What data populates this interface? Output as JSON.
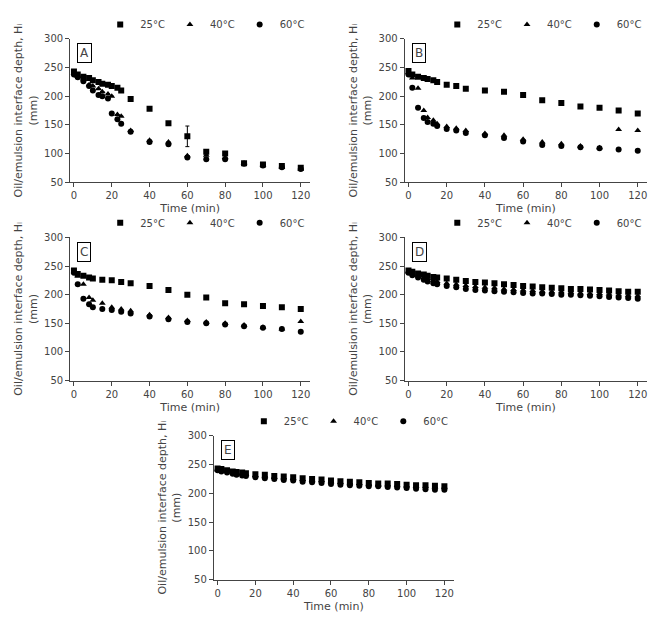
{
  "chart_data": [
    {
      "type": "scatter",
      "title": "A",
      "xlabel": "Time (min)",
      "ylabel": "Oil/emulsion interface depth, Hᵢ\n(mm)",
      "xlim": [
        -2,
        125
      ],
      "xticks": [
        0,
        20,
        40,
        60,
        80,
        100,
        120
      ],
      "ylim": [
        50,
        300
      ],
      "yticks": [
        50,
        100,
        150,
        200,
        250,
        300
      ],
      "grid": false,
      "legend": "upper right",
      "series": [
        {
          "name": "25°C",
          "color": "black",
          "marker": "square",
          "x": [
            0,
            2,
            5,
            8,
            10,
            13,
            15,
            18,
            20,
            23,
            25,
            30,
            40,
            50,
            60,
            70,
            80,
            90,
            100,
            110,
            120
          ],
          "values": [
            243,
            238,
            234,
            232,
            228,
            225,
            222,
            220,
            218,
            215,
            210,
            195,
            178,
            153,
            130,
            103,
            100,
            83,
            81,
            78,
            75
          ],
          "errors": [
            0,
            0,
            0,
            0,
            0,
            0,
            0,
            0,
            0,
            0,
            0,
            0,
            0,
            0,
            18,
            0,
            0,
            0,
            0,
            0,
            0
          ]
        },
        {
          "name": "40°C",
          "color": "black",
          "marker": "triangle-up",
          "x": [
            0,
            2,
            5,
            8,
            10,
            13,
            15,
            18,
            20,
            23,
            25,
            30,
            40,
            50,
            60,
            70,
            80,
            90,
            100,
            110,
            120
          ],
          "values": [
            240,
            235,
            230,
            220,
            218,
            213,
            208,
            204,
            200,
            168,
            165,
            140,
            123,
            120,
            96,
            97,
            93,
            83,
            80,
            76,
            73
          ],
          "errors": [
            0,
            0,
            0,
            0,
            0,
            0,
            0,
            0,
            0,
            0,
            0,
            0,
            0,
            0,
            0,
            0,
            0,
            0,
            0,
            0,
            0
          ]
        },
        {
          "name": "60°C",
          "color": "black",
          "marker": "circle",
          "x": [
            0,
            2,
            5,
            8,
            10,
            13,
            15,
            18,
            20,
            23,
            25,
            30,
            40,
            50,
            60,
            70,
            80,
            90,
            100,
            110,
            120
          ],
          "values": [
            238,
            233,
            226,
            218,
            210,
            202,
            200,
            196,
            170,
            160,
            152,
            138,
            120,
            116,
            93,
            90,
            90,
            82,
            79,
            76,
            73
          ],
          "errors": [
            0,
            0,
            0,
            0,
            0,
            0,
            0,
            0,
            0,
            0,
            0,
            0,
            0,
            0,
            0,
            0,
            0,
            0,
            0,
            0,
            0
          ]
        }
      ]
    },
    {
      "type": "scatter",
      "title": "B",
      "xlabel": "Time (min)",
      "ylabel": "Oil/emulsion interface depth, Hᵢ\n(mm)",
      "xlim": [
        -2,
        125
      ],
      "xticks": [
        0,
        20,
        40,
        60,
        80,
        100,
        120
      ],
      "ylim": [
        50,
        300
      ],
      "yticks": [
        50,
        100,
        150,
        200,
        250,
        300
      ],
      "grid": false,
      "legend": "upper right",
      "series": [
        {
          "name": "25°C",
          "color": "black",
          "marker": "square",
          "x": [
            0,
            2,
            5,
            8,
            10,
            13,
            15,
            20,
            25,
            30,
            40,
            50,
            60,
            70,
            80,
            90,
            100,
            110,
            120
          ],
          "values": [
            244,
            238,
            234,
            232,
            230,
            228,
            225,
            220,
            218,
            213,
            210,
            208,
            202,
            193,
            188,
            182,
            180,
            175,
            170
          ]
        },
        {
          "name": "40°C",
          "color": "black",
          "marker": "triangle-up",
          "x": [
            0,
            2,
            5,
            8,
            10,
            13,
            15,
            20,
            25,
            30,
            40,
            50,
            60,
            70,
            80,
            90,
            100,
            110,
            120
          ],
          "values": [
            241,
            232,
            214,
            175,
            163,
            158,
            152,
            147,
            144,
            140,
            135,
            132,
            125,
            120,
            117,
            113,
            110,
            142,
            140
          ]
        },
        {
          "name": "60°C",
          "color": "black",
          "marker": "circle",
          "x": [
            0,
            2,
            5,
            8,
            10,
            13,
            15,
            20,
            25,
            30,
            40,
            50,
            60,
            70,
            80,
            90,
            100,
            110,
            120
          ],
          "values": [
            238,
            215,
            180,
            162,
            155,
            152,
            148,
            143,
            140,
            136,
            132,
            127,
            121,
            115,
            113,
            111,
            109,
            107,
            105
          ]
        }
      ]
    },
    {
      "type": "scatter",
      "title": "C",
      "xlabel": "Time (min)",
      "ylabel": "Oil/emulsion interface depth, Hᵢ\n(mm)",
      "xlim": [
        -2,
        125
      ],
      "xticks": [
        0,
        20,
        40,
        60,
        80,
        100,
        120
      ],
      "ylim": [
        50,
        300
      ],
      "yticks": [
        50,
        100,
        150,
        200,
        250,
        300
      ],
      "grid": false,
      "legend": "upper right",
      "series": [
        {
          "name": "25°C",
          "color": "black",
          "marker": "square",
          "x": [
            0,
            2,
            5,
            8,
            10,
            15,
            20,
            25,
            30,
            40,
            50,
            60,
            70,
            80,
            90,
            100,
            110,
            120
          ],
          "values": [
            242,
            236,
            233,
            230,
            228,
            226,
            225,
            222,
            220,
            215,
            208,
            200,
            195,
            185,
            183,
            180,
            178,
            175
          ]
        },
        {
          "name": "40°C",
          "color": "black",
          "marker": "triangle-up",
          "x": [
            0,
            2,
            5,
            8,
            10,
            15,
            20,
            25,
            30,
            40,
            50,
            60,
            70,
            80,
            90,
            100,
            110,
            120
          ],
          "values": [
            240,
            232,
            218,
            195,
            190,
            185,
            178,
            175,
            172,
            165,
            160,
            155,
            152,
            150,
            147,
            143,
            140,
            153
          ]
        },
        {
          "name": "60°C",
          "color": "black",
          "marker": "circle",
          "x": [
            0,
            2,
            5,
            8,
            10,
            15,
            20,
            25,
            30,
            40,
            50,
            60,
            70,
            80,
            90,
            100,
            110,
            120
          ],
          "values": [
            238,
            218,
            193,
            183,
            178,
            175,
            173,
            170,
            167,
            162,
            157,
            152,
            150,
            148,
            145,
            142,
            140,
            135
          ]
        }
      ]
    },
    {
      "type": "scatter",
      "title": "D",
      "xlabel": "Time (min)",
      "ylabel": "Oil/emulsion interface depth, Hᵢ\n(mm)",
      "xlim": [
        -2,
        125
      ],
      "xticks": [
        0,
        20,
        40,
        60,
        80,
        100,
        120
      ],
      "ylim": [
        50,
        300
      ],
      "yticks": [
        50,
        100,
        150,
        200,
        250,
        300
      ],
      "grid": false,
      "legend": "upper right",
      "series": [
        {
          "name": "25°C",
          "color": "black",
          "marker": "square",
          "x": [
            0,
            2,
            5,
            8,
            10,
            13,
            15,
            20,
            25,
            30,
            35,
            40,
            45,
            50,
            55,
            60,
            65,
            70,
            75,
            80,
            85,
            90,
            95,
            100,
            105,
            110,
            115,
            120
          ],
          "values": [
            242,
            240,
            237,
            235,
            233,
            231,
            230,
            228,
            226,
            224,
            222,
            221,
            220,
            218,
            217,
            215,
            214,
            213,
            212,
            211,
            210,
            210,
            209,
            208,
            207,
            206,
            205,
            205
          ]
        },
        {
          "name": "40°C",
          "color": "black",
          "marker": "triangle-up",
          "x": [
            0,
            2,
            5,
            8,
            10,
            13,
            15,
            20,
            25,
            30,
            35,
            40,
            45,
            50,
            55,
            60,
            65,
            70,
            75,
            80,
            85,
            90,
            95,
            100,
            105,
            110,
            115,
            120
          ],
          "values": [
            240,
            237,
            234,
            230,
            228,
            225,
            223,
            220,
            218,
            216,
            214,
            213,
            212,
            210,
            209,
            208,
            207,
            206,
            205,
            205,
            204,
            203,
            202,
            202,
            201,
            200,
            199,
            198
          ]
        },
        {
          "name": "60°C",
          "color": "black",
          "marker": "circle",
          "x": [
            0,
            2,
            5,
            8,
            10,
            13,
            15,
            20,
            25,
            30,
            35,
            40,
            45,
            50,
            55,
            60,
            65,
            70,
            75,
            80,
            85,
            90,
            95,
            100,
            105,
            110,
            115,
            120
          ],
          "values": [
            238,
            234,
            230,
            226,
            223,
            220,
            218,
            215,
            213,
            210,
            208,
            207,
            206,
            205,
            204,
            203,
            202,
            202,
            201,
            200,
            200,
            199,
            198,
            197,
            196,
            195,
            194,
            193
          ]
        }
      ]
    },
    {
      "type": "scatter",
      "title": "E",
      "xlabel": "Time (min)",
      "ylabel": "Oil/emulsion interface depth, Hᵢ\n(mm)",
      "xlim": [
        -2,
        125
      ],
      "xticks": [
        0,
        20,
        40,
        60,
        80,
        100,
        120
      ],
      "ylim": [
        50,
        300
      ],
      "yticks": [
        50,
        100,
        150,
        200,
        250,
        300
      ],
      "grid": false,
      "legend": "upper right",
      "series": [
        {
          "name": "25°C",
          "color": "black",
          "marker": "square",
          "x": [
            0,
            2,
            5,
            8,
            10,
            13,
            15,
            20,
            25,
            30,
            35,
            40,
            45,
            50,
            55,
            60,
            65,
            70,
            75,
            80,
            85,
            90,
            95,
            100,
            105,
            110,
            115,
            120
          ],
          "values": [
            243,
            242,
            240,
            238,
            237,
            236,
            235,
            233,
            232,
            230,
            229,
            228,
            226,
            225,
            224,
            222,
            221,
            220,
            219,
            218,
            217,
            217,
            216,
            215,
            214,
            214,
            213,
            212
          ]
        },
        {
          "name": "40°C",
          "color": "black",
          "marker": "triangle-up",
          "x": [
            0,
            2,
            5,
            8,
            10,
            13,
            15,
            20,
            25,
            30,
            35,
            40,
            45,
            50,
            55,
            60,
            65,
            70,
            75,
            80,
            85,
            90,
            95,
            100,
            105,
            110,
            115,
            120
          ],
          "values": [
            241,
            240,
            238,
            236,
            235,
            234,
            233,
            231,
            230,
            228,
            227,
            226,
            224,
            223,
            222,
            220,
            219,
            218,
            217,
            216,
            215,
            215,
            214,
            213,
            212,
            212,
            211,
            211
          ]
        },
        {
          "name": "60°C",
          "color": "black",
          "marker": "circle",
          "x": [
            0,
            2,
            5,
            8,
            10,
            13,
            15,
            20,
            25,
            30,
            35,
            40,
            45,
            50,
            55,
            60,
            65,
            70,
            75,
            80,
            85,
            90,
            95,
            100,
            105,
            110,
            115,
            120
          ],
          "values": [
            240,
            238,
            236,
            234,
            232,
            231,
            230,
            228,
            226,
            225,
            223,
            222,
            220,
            219,
            218,
            216,
            215,
            214,
            213,
            212,
            212,
            211,
            210,
            209,
            208,
            207,
            206,
            206
          ]
        }
      ]
    }
  ]
}
